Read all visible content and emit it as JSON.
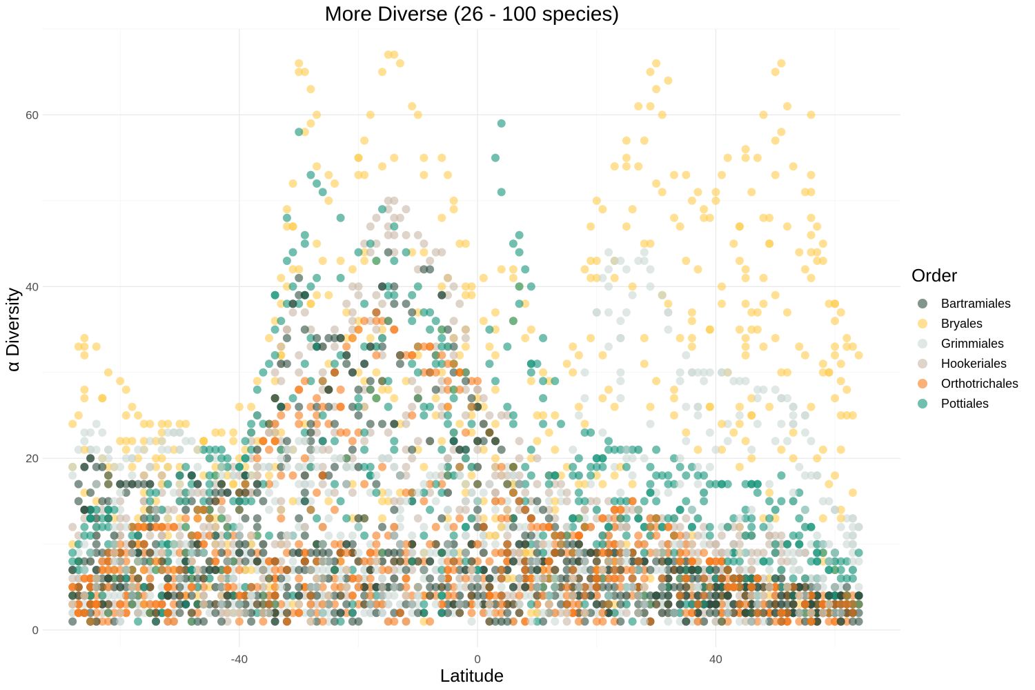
{
  "chart_data": {
    "type": "scatter",
    "title": "More Diverse (26 - 100 species)",
    "xlabel": "Latitude",
    "ylabel": "α Diversity",
    "xlim": [
      -73,
      71
    ],
    "ylim": [
      -2,
      70
    ],
    "x_ticks": [
      -40,
      0,
      40
    ],
    "y_ticks": [
      0,
      20,
      40,
      60
    ],
    "grid": true,
    "legend": {
      "title": "Order",
      "placement": "right",
      "entries": [
        {
          "name": "Bartramiales",
          "color": "#2f4f3f"
        },
        {
          "name": "Bryales",
          "color": "#ffcc4d"
        },
        {
          "name": "Grimmiales",
          "color": "#ccd8d5"
        },
        {
          "name": "Hookeriales",
          "color": "#c9b7a6"
        },
        {
          "name": "Orthotrichales",
          "color": "#f97c1c"
        },
        {
          "name": "Pottiales",
          "color": "#149479"
        }
      ]
    },
    "series": [
      {
        "name": "Bartramiales",
        "color": "#2f4f3f",
        "profile": [
          [
            -68,
            16
          ],
          [
            -65,
            20
          ],
          [
            -60,
            17
          ],
          [
            -55,
            17
          ],
          [
            -50,
            18
          ],
          [
            -45,
            17
          ],
          [
            -40,
            16
          ],
          [
            -35,
            24
          ],
          [
            -32,
            34
          ],
          [
            -30,
            41
          ],
          [
            -27,
            34
          ],
          [
            -23,
            34
          ],
          [
            -20,
            28
          ],
          [
            -18,
            33
          ],
          [
            -15,
            44
          ],
          [
            -13,
            36
          ],
          [
            -10,
            41
          ],
          [
            -7,
            43
          ],
          [
            -5,
            35
          ],
          [
            -3,
            30
          ],
          [
            -1,
            27
          ],
          [
            1,
            24
          ],
          [
            3,
            22
          ],
          [
            5,
            20
          ],
          [
            8,
            16
          ],
          [
            11,
            14
          ],
          [
            15,
            10
          ],
          [
            20,
            9
          ],
          [
            30,
            8
          ],
          [
            40,
            6
          ],
          [
            50,
            5
          ],
          [
            60,
            4
          ],
          [
            64,
            4
          ]
        ]
      },
      {
        "name": "Bryales",
        "color": "#ffcc4d",
        "profile": [
          [
            -68,
            31
          ],
          [
            -65,
            36
          ],
          [
            -63,
            30
          ],
          [
            -60,
            29
          ],
          [
            -57,
            25
          ],
          [
            -53,
            24
          ],
          [
            -50,
            25
          ],
          [
            -46,
            22
          ],
          [
            -42,
            23
          ],
          [
            -38,
            28
          ],
          [
            -35,
            36
          ],
          [
            -33,
            45
          ],
          [
            -31,
            52
          ],
          [
            -30,
            66
          ],
          [
            -28,
            63
          ],
          [
            -25,
            53
          ],
          [
            -22,
            51
          ],
          [
            -19,
            57
          ],
          [
            -17,
            63
          ],
          [
            -15,
            67
          ],
          [
            -13,
            66
          ],
          [
            -11,
            61
          ],
          [
            -9,
            59
          ],
          [
            -7,
            56
          ],
          [
            -5,
            53
          ],
          [
            -3,
            46
          ],
          [
            -1,
            43
          ],
          [
            1,
            41
          ],
          [
            3,
            39
          ],
          [
            5,
            44
          ],
          [
            7,
            40
          ],
          [
            9,
            35
          ],
          [
            11,
            30
          ],
          [
            14,
            27
          ],
          [
            17,
            38
          ],
          [
            20,
            51
          ],
          [
            23,
            54
          ],
          [
            26,
            58
          ],
          [
            28,
            64
          ],
          [
            30,
            66
          ],
          [
            32,
            64
          ],
          [
            34,
            59
          ],
          [
            36,
            52
          ],
          [
            38,
            49
          ],
          [
            40,
            51
          ],
          [
            42,
            55
          ],
          [
            44,
            63
          ],
          [
            46,
            62
          ],
          [
            48,
            60
          ],
          [
            50,
            65
          ],
          [
            52,
            67
          ],
          [
            54,
            65
          ],
          [
            56,
            60
          ],
          [
            58,
            47
          ],
          [
            60,
            39
          ],
          [
            62,
            34
          ],
          [
            64,
            32
          ]
        ]
      },
      {
        "name": "Grimmiales",
        "color": "#ccd8d5",
        "profile": [
          [
            -68,
            19
          ],
          [
            -65,
            25
          ],
          [
            -60,
            19
          ],
          [
            -55,
            22
          ],
          [
            -50,
            23
          ],
          [
            -45,
            20
          ],
          [
            -40,
            18
          ],
          [
            -35,
            19
          ],
          [
            -30,
            22
          ],
          [
            -25,
            20
          ],
          [
            -20,
            19
          ],
          [
            -15,
            20
          ],
          [
            -10,
            16
          ],
          [
            -5,
            20
          ],
          [
            0,
            15
          ],
          [
            5,
            19
          ],
          [
            10,
            14
          ],
          [
            15,
            16
          ],
          [
            18,
            30
          ],
          [
            22,
            44
          ],
          [
            25,
            42
          ],
          [
            28,
            44
          ],
          [
            30,
            40
          ],
          [
            33,
            36
          ],
          [
            36,
            30
          ],
          [
            40,
            30
          ],
          [
            45,
            29
          ],
          [
            50,
            28
          ],
          [
            55,
            25
          ],
          [
            58,
            15
          ],
          [
            62,
            13
          ],
          [
            64,
            12
          ]
        ]
      },
      {
        "name": "Hookeriales",
        "color": "#c9b7a6",
        "profile": [
          [
            -68,
            12
          ],
          [
            -62,
            14
          ],
          [
            -55,
            19
          ],
          [
            -50,
            16
          ],
          [
            -45,
            16
          ],
          [
            -40,
            20
          ],
          [
            -35,
            28
          ],
          [
            -30,
            40
          ],
          [
            -27,
            32
          ],
          [
            -22,
            38
          ],
          [
            -18,
            47
          ],
          [
            -15,
            50
          ],
          [
            -12,
            49
          ],
          [
            -9,
            45
          ],
          [
            -6,
            44
          ],
          [
            -4,
            40
          ],
          [
            -2,
            35
          ],
          [
            0,
            28
          ],
          [
            2,
            26
          ],
          [
            5,
            25
          ],
          [
            10,
            20
          ],
          [
            15,
            16
          ],
          [
            20,
            15
          ],
          [
            30,
            13
          ],
          [
            40,
            12
          ],
          [
            50,
            11
          ],
          [
            55,
            9
          ]
        ]
      },
      {
        "name": "Orthotrichales",
        "color": "#f97c1c",
        "profile": [
          [
            -68,
            5
          ],
          [
            -64,
            6
          ],
          [
            -58,
            12
          ],
          [
            -52,
            12
          ],
          [
            -46,
            14
          ],
          [
            -40,
            16
          ],
          [
            -35,
            23
          ],
          [
            -32,
            26
          ],
          [
            -28,
            30
          ],
          [
            -25,
            28
          ],
          [
            -22,
            33
          ],
          [
            -18,
            37
          ],
          [
            -15,
            36
          ],
          [
            -12,
            32
          ],
          [
            -9,
            33
          ],
          [
            -6,
            32
          ],
          [
            -3,
            30
          ],
          [
            0,
            29
          ],
          [
            3,
            20
          ],
          [
            6,
            16
          ],
          [
            10,
            12
          ],
          [
            15,
            11
          ],
          [
            20,
            12
          ],
          [
            25,
            15
          ],
          [
            30,
            13
          ],
          [
            35,
            10
          ],
          [
            45,
            6
          ],
          [
            55,
            4
          ],
          [
            60,
            3
          ],
          [
            64,
            3
          ]
        ]
      },
      {
        "name": "Pottiales",
        "color": "#149479",
        "profile": [
          [
            -68,
            12
          ],
          [
            -64,
            14
          ],
          [
            -58,
            14
          ],
          [
            -52,
            17
          ],
          [
            -46,
            21
          ],
          [
            -40,
            21
          ],
          [
            -36,
            30
          ],
          [
            -33,
            44
          ],
          [
            -31,
            53
          ],
          [
            -30,
            58
          ],
          [
            -28,
            53
          ],
          [
            -25,
            50
          ],
          [
            -22,
            47
          ],
          [
            -19,
            43
          ],
          [
            -16,
            49
          ],
          [
            -13,
            46
          ],
          [
            -10,
            40
          ],
          [
            -7,
            36
          ],
          [
            -5,
            33
          ],
          [
            -3,
            29
          ],
          [
            -1,
            30
          ],
          [
            1,
            36
          ],
          [
            2,
            54
          ],
          [
            4,
            59
          ],
          [
            5,
            56
          ],
          [
            6,
            50
          ],
          [
            8,
            42
          ],
          [
            10,
            37
          ],
          [
            12,
            31
          ],
          [
            14,
            27
          ],
          [
            16,
            24
          ],
          [
            20,
            22
          ],
          [
            25,
            21
          ],
          [
            30,
            21
          ],
          [
            35,
            19
          ],
          [
            40,
            17
          ],
          [
            45,
            17
          ],
          [
            50,
            18
          ],
          [
            55,
            19
          ],
          [
            57,
            10
          ],
          [
            60,
            9
          ],
          [
            64,
            9
          ]
        ]
      }
    ]
  }
}
